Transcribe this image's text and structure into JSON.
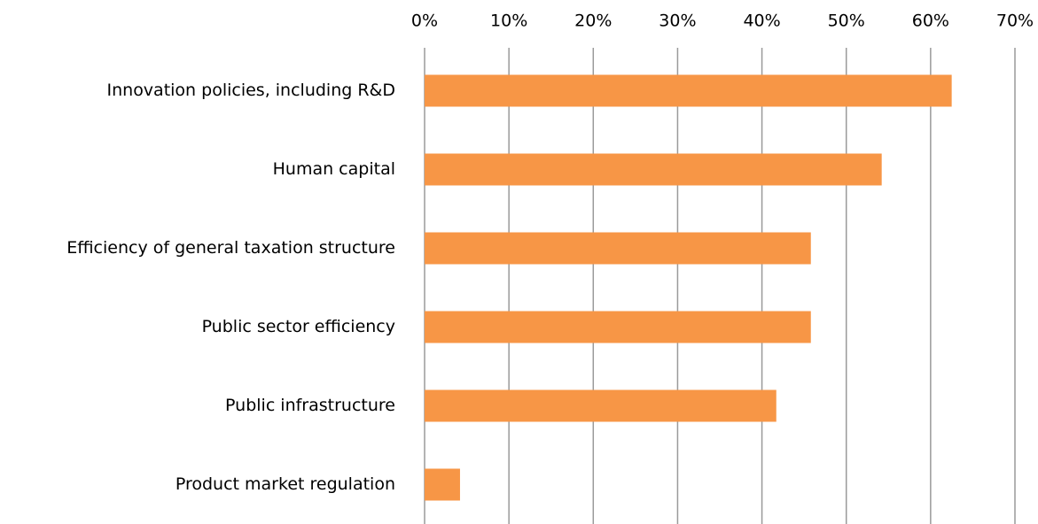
{
  "chart_data": {
    "type": "bar",
    "orientation": "horizontal",
    "categories": [
      "Innovation policies, including R&D",
      "Human capital",
      "Efficiency of general taxation structure",
      "Public sector efficiency",
      "Public infrastructure",
      "Product market regulation"
    ],
    "values": [
      62.5,
      54.2,
      45.8,
      45.8,
      41.7,
      4.2
    ],
    "color": "#f79646",
    "xlim": [
      0,
      70
    ],
    "xticks": [
      {
        "value": 0,
        "label": "0%"
      },
      {
        "value": 10,
        "label": "10%"
      },
      {
        "value": 20,
        "label": "20%"
      },
      {
        "value": 30,
        "label": "30%"
      },
      {
        "value": 40,
        "label": "40%"
      },
      {
        "value": 50,
        "label": "50%"
      },
      {
        "value": 60,
        "label": "60%"
      },
      {
        "value": 70,
        "label": "70%"
      }
    ],
    "grid": true
  }
}
